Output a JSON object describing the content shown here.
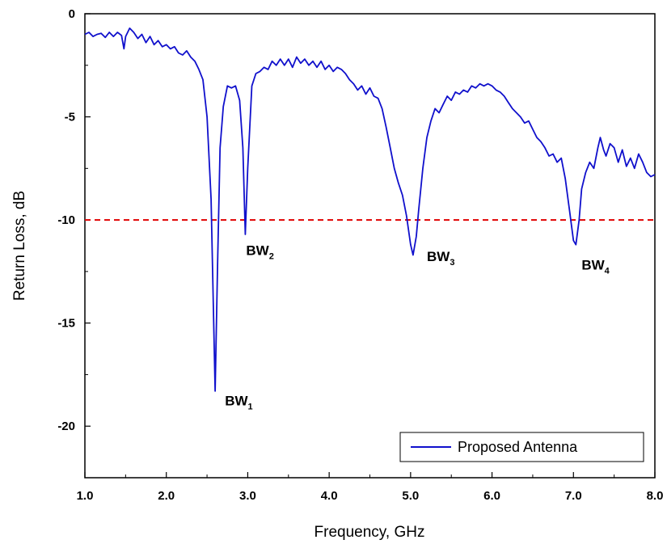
{
  "chart_data": {
    "type": "line",
    "xlabel": "Frequency, GHz",
    "ylabel": "Return Loss, dB",
    "xlim": [
      1.0,
      8.0
    ],
    "ylim": [
      -22.5,
      0
    ],
    "x_ticks": [
      "1.0",
      "2.0",
      "3.0",
      "4.0",
      "5.0",
      "6.0",
      "7.0",
      "8.0"
    ],
    "y_ticks": [
      "0",
      "-5",
      "-10",
      "-15",
      "-20"
    ],
    "grid": false,
    "legend": {
      "position": "bottom-right",
      "entries": [
        "Proposed Antenna"
      ]
    },
    "reference_line": {
      "y": -10,
      "color": "#e00000",
      "style": "dashed"
    },
    "series": [
      {
        "name": "Proposed Antenna",
        "color": "#1010cc",
        "points": [
          [
            1.0,
            -1.0
          ],
          [
            1.05,
            -0.9
          ],
          [
            1.1,
            -1.1
          ],
          [
            1.15,
            -1.0
          ],
          [
            1.2,
            -0.95
          ],
          [
            1.25,
            -1.15
          ],
          [
            1.3,
            -0.9
          ],
          [
            1.35,
            -1.1
          ],
          [
            1.4,
            -0.9
          ],
          [
            1.45,
            -1.05
          ],
          [
            1.48,
            -1.7
          ],
          [
            1.5,
            -1.1
          ],
          [
            1.55,
            -0.7
          ],
          [
            1.6,
            -0.9
          ],
          [
            1.65,
            -1.2
          ],
          [
            1.7,
            -1.0
          ],
          [
            1.75,
            -1.4
          ],
          [
            1.8,
            -1.1
          ],
          [
            1.85,
            -1.5
          ],
          [
            1.9,
            -1.3
          ],
          [
            1.95,
            -1.6
          ],
          [
            2.0,
            -1.5
          ],
          [
            2.05,
            -1.7
          ],
          [
            2.1,
            -1.6
          ],
          [
            2.15,
            -1.9
          ],
          [
            2.2,
            -2.0
          ],
          [
            2.25,
            -1.8
          ],
          [
            2.3,
            -2.1
          ],
          [
            2.35,
            -2.3
          ],
          [
            2.4,
            -2.7
          ],
          [
            2.45,
            -3.2
          ],
          [
            2.5,
            -5.0
          ],
          [
            2.55,
            -9.0
          ],
          [
            2.6,
            -18.3
          ],
          [
            2.63,
            -12.0
          ],
          [
            2.66,
            -6.5
          ],
          [
            2.7,
            -4.5
          ],
          [
            2.75,
            -3.5
          ],
          [
            2.8,
            -3.6
          ],
          [
            2.85,
            -3.5
          ],
          [
            2.9,
            -4.2
          ],
          [
            2.94,
            -6.5
          ],
          [
            2.97,
            -10.7
          ],
          [
            3.0,
            -7.5
          ],
          [
            3.05,
            -3.5
          ],
          [
            3.1,
            -2.9
          ],
          [
            3.15,
            -2.8
          ],
          [
            3.2,
            -2.6
          ],
          [
            3.25,
            -2.7
          ],
          [
            3.3,
            -2.3
          ],
          [
            3.35,
            -2.5
          ],
          [
            3.4,
            -2.2
          ],
          [
            3.45,
            -2.5
          ],
          [
            3.5,
            -2.2
          ],
          [
            3.55,
            -2.6
          ],
          [
            3.6,
            -2.1
          ],
          [
            3.65,
            -2.4
          ],
          [
            3.7,
            -2.2
          ],
          [
            3.75,
            -2.5
          ],
          [
            3.8,
            -2.3
          ],
          [
            3.85,
            -2.6
          ],
          [
            3.9,
            -2.3
          ],
          [
            3.95,
            -2.7
          ],
          [
            4.0,
            -2.5
          ],
          [
            4.05,
            -2.8
          ],
          [
            4.1,
            -2.6
          ],
          [
            4.15,
            -2.7
          ],
          [
            4.2,
            -2.9
          ],
          [
            4.25,
            -3.2
          ],
          [
            4.3,
            -3.4
          ],
          [
            4.35,
            -3.7
          ],
          [
            4.4,
            -3.5
          ],
          [
            4.45,
            -3.9
          ],
          [
            4.5,
            -3.6
          ],
          [
            4.55,
            -4.0
          ],
          [
            4.6,
            -4.1
          ],
          [
            4.65,
            -4.6
          ],
          [
            4.7,
            -5.5
          ],
          [
            4.75,
            -6.5
          ],
          [
            4.8,
            -7.5
          ],
          [
            4.85,
            -8.2
          ],
          [
            4.9,
            -8.8
          ],
          [
            4.95,
            -9.8
          ],
          [
            5.0,
            -11.2
          ],
          [
            5.03,
            -11.7
          ],
          [
            5.07,
            -10.8
          ],
          [
            5.1,
            -9.5
          ],
          [
            5.15,
            -7.5
          ],
          [
            5.2,
            -6.0
          ],
          [
            5.25,
            -5.2
          ],
          [
            5.3,
            -4.6
          ],
          [
            5.35,
            -4.8
          ],
          [
            5.4,
            -4.4
          ],
          [
            5.45,
            -4.0
          ],
          [
            5.5,
            -4.2
          ],
          [
            5.55,
            -3.8
          ],
          [
            5.6,
            -3.9
          ],
          [
            5.65,
            -3.7
          ],
          [
            5.7,
            -3.8
          ],
          [
            5.75,
            -3.5
          ],
          [
            5.8,
            -3.6
          ],
          [
            5.85,
            -3.4
          ],
          [
            5.9,
            -3.5
          ],
          [
            5.95,
            -3.4
          ],
          [
            6.0,
            -3.5
          ],
          [
            6.05,
            -3.7
          ],
          [
            6.1,
            -3.8
          ],
          [
            6.15,
            -4.0
          ],
          [
            6.2,
            -4.3
          ],
          [
            6.25,
            -4.6
          ],
          [
            6.3,
            -4.8
          ],
          [
            6.35,
            -5.0
          ],
          [
            6.4,
            -5.3
          ],
          [
            6.45,
            -5.2
          ],
          [
            6.5,
            -5.6
          ],
          [
            6.55,
            -6.0
          ],
          [
            6.6,
            -6.2
          ],
          [
            6.65,
            -6.5
          ],
          [
            6.7,
            -6.9
          ],
          [
            6.75,
            -6.8
          ],
          [
            6.8,
            -7.2
          ],
          [
            6.85,
            -7.0
          ],
          [
            6.9,
            -8.0
          ],
          [
            6.95,
            -9.5
          ],
          [
            7.0,
            -11.0
          ],
          [
            7.03,
            -11.2
          ],
          [
            7.07,
            -10.0
          ],
          [
            7.1,
            -8.5
          ],
          [
            7.15,
            -7.7
          ],
          [
            7.2,
            -7.2
          ],
          [
            7.25,
            -7.5
          ],
          [
            7.3,
            -6.5
          ],
          [
            7.33,
            -6.0
          ],
          [
            7.37,
            -6.6
          ],
          [
            7.4,
            -6.9
          ],
          [
            7.45,
            -6.3
          ],
          [
            7.5,
            -6.5
          ],
          [
            7.55,
            -7.2
          ],
          [
            7.6,
            -6.6
          ],
          [
            7.65,
            -7.4
          ],
          [
            7.7,
            -7.0
          ],
          [
            7.75,
            -7.5
          ],
          [
            7.8,
            -6.8
          ],
          [
            7.85,
            -7.2
          ],
          [
            7.9,
            -7.7
          ],
          [
            7.95,
            -7.9
          ],
          [
            8.0,
            -7.8
          ]
        ]
      }
    ],
    "annotations": [
      {
        "base": "BW",
        "sub": "1",
        "x": 2.72,
        "y": -19.0
      },
      {
        "base": "BW",
        "sub": "2",
        "x": 2.98,
        "y": -11.7
      },
      {
        "base": "BW",
        "sub": "3",
        "x": 5.2,
        "y": -12.0
      },
      {
        "base": "BW",
        "sub": "4",
        "x": 7.1,
        "y": -12.4
      }
    ]
  }
}
